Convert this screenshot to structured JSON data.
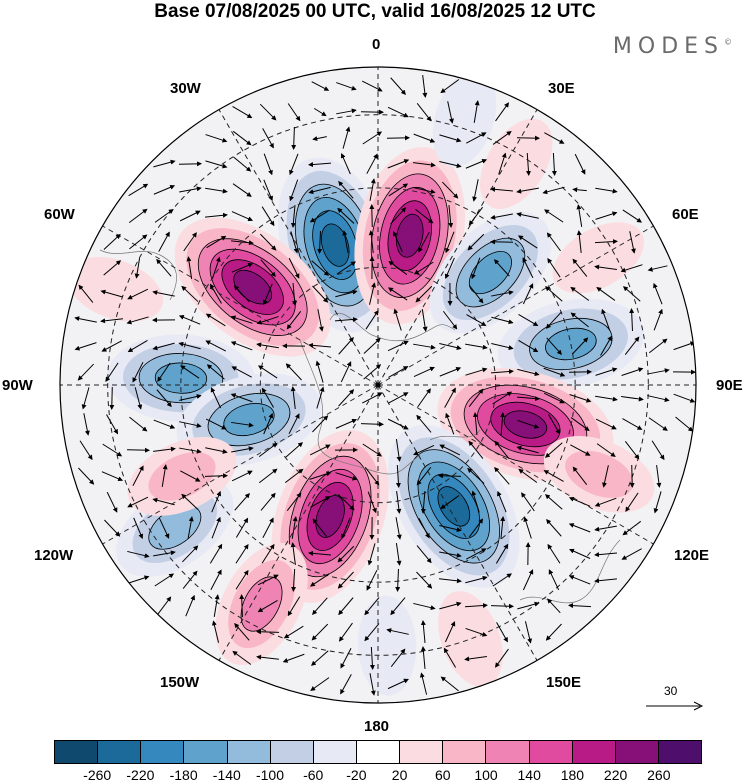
{
  "title": "Base 07/08/2025 00 UTC, valid 16/08/2025 12 UTC",
  "brand": "MODES",
  "brand_mark": "©",
  "longitude_labels": {
    "lon_0": "0",
    "lon_30e": "30E",
    "lon_60e": "60E",
    "lon_90e": "90E",
    "lon_120e": "120E",
    "lon_150e": "150E",
    "lon_180": "180",
    "lon_150w": "150W",
    "lon_120w": "120W",
    "lon_90w": "90W",
    "lon_60w": "60W",
    "lon_30w": "30W"
  },
  "reference_vector": {
    "value": "30",
    "icon": "arrow-right-icon"
  },
  "colorbar": {
    "colors": [
      "#0f4a6e",
      "#1b6a99",
      "#3488bd",
      "#5fa2cc",
      "#93bbdc",
      "#c3cfe5",
      "#e7e9f4",
      "#ffffff",
      "#fbdde1",
      "#f8b6c6",
      "#ef84b4",
      "#e04b9f",
      "#b81a86",
      "#861078",
      "#4e0e6c"
    ],
    "labels": [
      "-260",
      "-220",
      "-180",
      "-140",
      "-100",
      "-60",
      "-20",
      "20",
      "60",
      "100",
      "140",
      "180",
      "220",
      "260"
    ]
  },
  "anomaly_centers": [
    {
      "sign": "negative",
      "value": -260,
      "lon": -17,
      "lat_dist": 0.46
    },
    {
      "sign": "positive",
      "value": 260,
      "lon": 12,
      "lat_dist": 0.48
    },
    {
      "sign": "positive",
      "value": 260,
      "lon": -52,
      "lat_dist": 0.5
    },
    {
      "sign": "negative",
      "value": -180,
      "lon": 45,
      "lat_dist": 0.5
    },
    {
      "sign": "negative",
      "value": -180,
      "lon": 78,
      "lat_dist": 0.62
    },
    {
      "sign": "negative",
      "value": -180,
      "lon": -88,
      "lat_dist": 0.62
    },
    {
      "sign": "negative",
      "value": -180,
      "lon": -105,
      "lat_dist": 0.42
    },
    {
      "sign": "positive",
      "value": 260,
      "lon": 105,
      "lat_dist": 0.48
    },
    {
      "sign": "negative",
      "value": -260,
      "lon": 148,
      "lat_dist": 0.45
    },
    {
      "sign": "positive",
      "value": 260,
      "lon": -160,
      "lat_dist": 0.44
    },
    {
      "sign": "negative",
      "value": -140,
      "lon": -125,
      "lat_dist": 0.78
    },
    {
      "sign": "positive",
      "value": 100,
      "lon": -115,
      "lat_dist": 0.68
    },
    {
      "sign": "positive",
      "value": 140,
      "lon": -152,
      "lat_dist": 0.78
    },
    {
      "sign": "negative",
      "value": -60,
      "lon": 178,
      "lat_dist": 0.82
    },
    {
      "sign": "positive",
      "value": 60,
      "lon": 160,
      "lat_dist": 0.85
    },
    {
      "sign": "positive",
      "value": 60,
      "lon": 60,
      "lat_dist": 0.8
    },
    {
      "sign": "positive",
      "value": 60,
      "lon": 32,
      "lat_dist": 0.82
    },
    {
      "sign": "negative",
      "value": -60,
      "lon": 18,
      "lat_dist": 0.88
    },
    {
      "sign": "positive",
      "value": 60,
      "lon": -70,
      "lat_dist": 0.88
    },
    {
      "sign": "positive",
      "value": 100,
      "lon": 112,
      "lat_dist": 0.75
    }
  ]
}
